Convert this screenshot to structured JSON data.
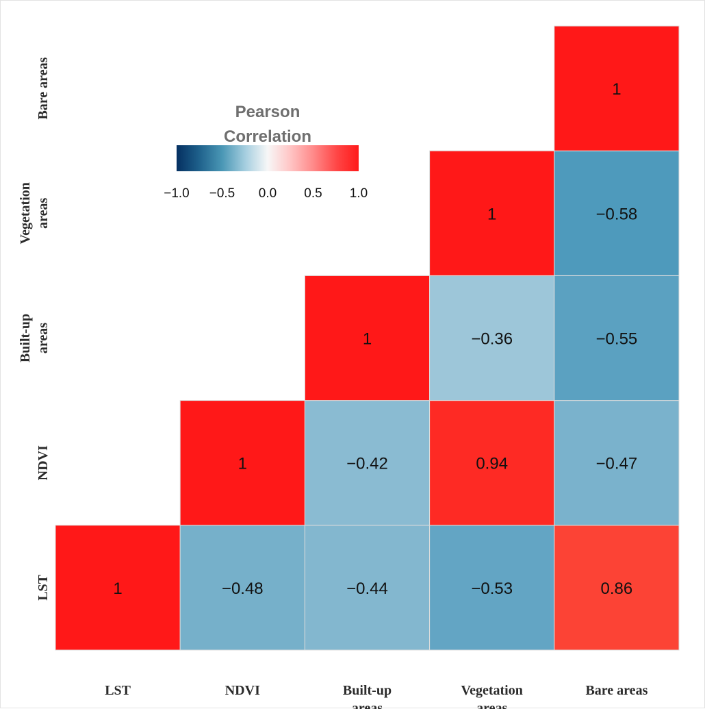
{
  "chart_data": {
    "type": "heatmap",
    "variables": [
      "LST",
      "NDVI",
      "Built-up areas",
      "Vegetation areas",
      "Bare areas"
    ],
    "x_tick_labels": [
      [
        "LST"
      ],
      [
        "NDVI"
      ],
      [
        "Built-up",
        "areas"
      ],
      [
        "Vegetation",
        "areas"
      ],
      [
        "Bare areas"
      ]
    ],
    "y_tick_labels": [
      [
        "LST"
      ],
      [
        "NDVI"
      ],
      [
        "Built-up",
        "areas"
      ],
      [
        "Vegetation",
        "areas"
      ],
      [
        "Bare areas"
      ]
    ],
    "matrix": [
      [
        1,
        null,
        null,
        null,
        null
      ],
      [
        -0.48,
        1,
        null,
        null,
        null
      ],
      [
        -0.44,
        -0.42,
        1,
        null,
        null
      ],
      [
        -0.53,
        0.94,
        -0.36,
        1,
        null
      ],
      [
        0.86,
        -0.47,
        -0.55,
        -0.58,
        1
      ]
    ],
    "matrix_note": "matrix[c][r]: c = x-axis column index, r = y-axis row index (0 = LST at bottom)",
    "cell_labels": [
      [
        "1",
        null,
        null,
        null,
        null
      ],
      [
        "−0.48",
        "1",
        null,
        null,
        null
      ],
      [
        "−0.44",
        "−0.42",
        "1",
        null,
        null
      ],
      [
        "−0.53",
        "0.94",
        "−0.36",
        "1",
        null
      ],
      [
        "0.86",
        "−0.47",
        "−0.55",
        "−0.58",
        "1"
      ]
    ],
    "legend": {
      "title_lines": [
        "Pearson",
        "Correlation"
      ],
      "range": [
        -1.0,
        1.0
      ],
      "ticks": [
        -1.0,
        -0.5,
        0.0,
        0.5,
        1.0
      ],
      "tick_labels": [
        "−1.0",
        "−0.5",
        "0.0",
        "0.5",
        "1.0"
      ],
      "placement": "top-left",
      "colors": {
        "low": "#053061",
        "mid": "#f7f7f7",
        "high": "#ff0000"
      }
    },
    "colors": {
      "cell_border": "#dcdcdc"
    }
  }
}
